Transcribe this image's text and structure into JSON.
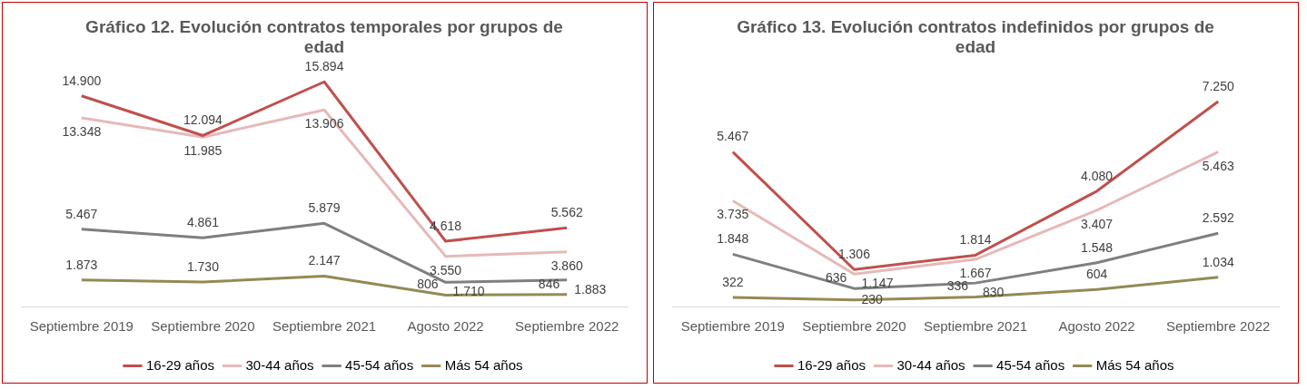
{
  "chart_data": [
    {
      "type": "line",
      "title": "Gráfico 12. Evolución contratos temporales por grupos de edad",
      "categories": [
        "Septiembre 2019",
        "Septiembre 2020",
        "Septiembre 2021",
        "Agosto 2022",
        "Septiembre 2022"
      ],
      "tick_labels": "x",
      "legend": "bottom",
      "grid": false,
      "marker": "none",
      "series": [
        {
          "name": "16-29 años",
          "color": "#c0504d",
          "values": [
            14900,
            12094,
            15894,
            4618,
            5562
          ],
          "value_labels": [
            "14.900",
            "12.094",
            "15.894",
            "4.618",
            "5.562"
          ]
        },
        {
          "name": "30-44 años",
          "color": "#e6b9b8",
          "values": [
            13348,
            11985,
            13906,
            3550,
            3860
          ],
          "value_labels": [
            "13.348",
            "11.985",
            "13.906",
            "3.550",
            "3.860"
          ]
        },
        {
          "name": "45-54 años",
          "color": "#7f7f7f",
          "values": [
            5467,
            4861,
            5879,
            1710,
            1883
          ],
          "value_labels": [
            "5.467",
            "4.861",
            "5.879",
            "1.710",
            "1.883"
          ]
        },
        {
          "name": "Más 54 años",
          "color": "#948a54",
          "values": [
            1873,
            1730,
            2147,
            806,
            846
          ],
          "value_labels": [
            "1.873",
            "1.730",
            "2.147",
            "806",
            "846"
          ]
        }
      ]
    },
    {
      "type": "line",
      "title": "Gráfico 13. Evolución contratos indefinidos por grupos de edad",
      "categories": [
        "Septiembre 2019",
        "Septiembre 2020",
        "Septiembre 2021",
        "Agosto 2022",
        "Septiembre 2022"
      ],
      "tick_labels": "x",
      "legend": "bottom",
      "grid": false,
      "marker": "none",
      "series": [
        {
          "name": "16-29 años",
          "color": "#c0504d",
          "values": [
            5467,
            1306,
            1814,
            4080,
            7250
          ],
          "value_labels": [
            "5.467",
            "1.306",
            "1.814",
            "4.080",
            "7.250"
          ]
        },
        {
          "name": "30-44 años",
          "color": "#e6b9b8",
          "values": [
            3735,
            1147,
            1667,
            3407,
            5463
          ],
          "value_labels": [
            "3.735",
            "1.147",
            "1.667",
            "3.407",
            "5.463"
          ]
        },
        {
          "name": "45-54 años",
          "color": "#7f7f7f",
          "values": [
            1848,
            636,
            830,
            1548,
            2592
          ],
          "value_labels": [
            "1.848",
            "636",
            "830",
            "1.548",
            "2.592"
          ]
        },
        {
          "name": "Más 54 años",
          "color": "#948a54",
          "values": [
            322,
            230,
            336,
            604,
            1034
          ],
          "value_labels": [
            "322",
            "230",
            "336",
            "604",
            "1.034"
          ]
        }
      ]
    }
  ]
}
